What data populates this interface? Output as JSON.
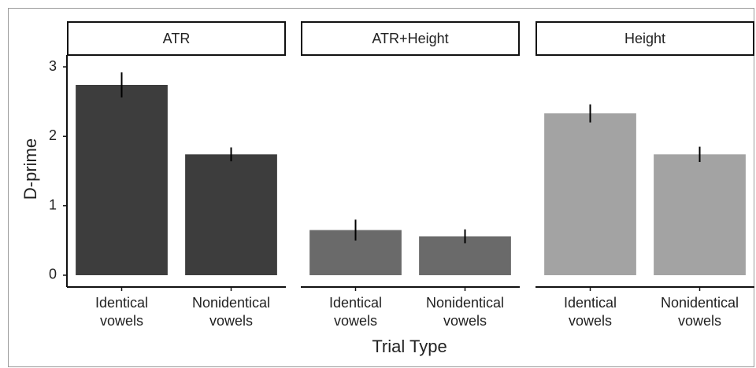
{
  "chart_data": {
    "type": "bar",
    "y_label": "D-prime",
    "x_label": "Trial Type",
    "ylim": [
      -0.17,
      3.17
    ],
    "yticks": [
      0,
      1,
      2,
      3
    ],
    "panels": [
      {
        "title": "ATR",
        "color": "#3d3d3d",
        "categories": [
          [
            "Identical",
            "vowels"
          ],
          [
            "Nonidentical",
            "vowels"
          ]
        ],
        "values": [
          2.74,
          1.74
        ],
        "errors": [
          0.18,
          0.1
        ]
      },
      {
        "title": "ATR+Height",
        "color": "#6a6a6a",
        "categories": [
          [
            "Identical",
            "vowels"
          ],
          [
            "Nonidentical",
            "vowels"
          ]
        ],
        "values": [
          0.65,
          0.56
        ],
        "errors": [
          0.15,
          0.1
        ]
      },
      {
        "title": "Height",
        "color": "#a3a3a3",
        "categories": [
          [
            "Identical",
            "vowels"
          ],
          [
            "Nonidentical",
            "vowels"
          ]
        ],
        "values": [
          2.33,
          1.74
        ],
        "errors": [
          0.13,
          0.11
        ]
      }
    ]
  }
}
